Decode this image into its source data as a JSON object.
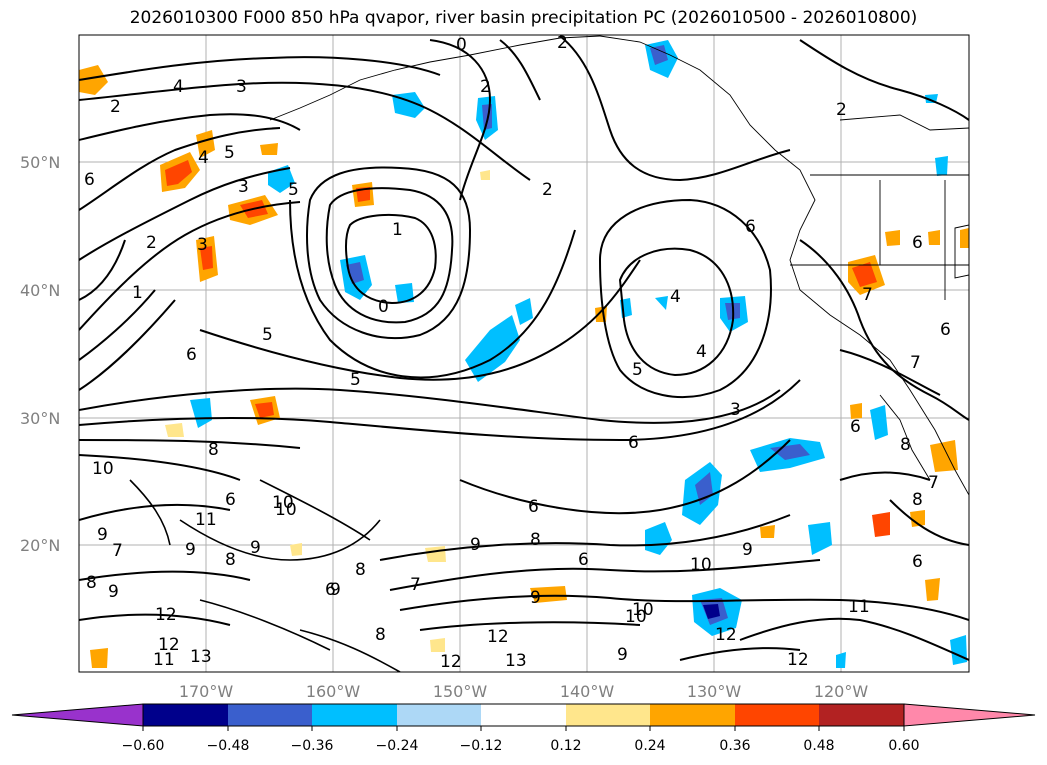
{
  "title": "2026010300 F000 850 hPa qvapor, river basin precipitation PC (2026010500 - 2026010800)",
  "lat_labels": [
    "50°N",
    "40°N",
    "30°N",
    "20°N"
  ],
  "lon_labels": [
    "170°W",
    "160°W",
    "150°W",
    "140°W",
    "130°W",
    "120°W"
  ],
  "colorbar": {
    "ticks": [
      "−0.60",
      "−0.48",
      "−0.36",
      "−0.24",
      "−0.12",
      "0.12",
      "0.24",
      "0.36",
      "0.48",
      "0.60"
    ],
    "colors": [
      "#9932cc",
      "#00008b",
      "#3a5fcd",
      "#00bfff",
      "#add8f6",
      "#ffffff",
      "#ffe68c",
      "#ffa500",
      "#ff4500",
      "#b22222",
      "#ff88aa"
    ],
    "extend": "both"
  },
  "contour_labels": [
    "4",
    "3",
    "2",
    "2",
    "2",
    "2",
    "4",
    "5",
    "3",
    "5",
    "2",
    "1",
    "1",
    "0",
    "3",
    "5",
    "6",
    "6",
    "5",
    "6",
    "6",
    "5",
    "4",
    "4",
    "3",
    "6",
    "6",
    "7",
    "10",
    "8",
    "6",
    "9",
    "10",
    "11",
    "9",
    "9",
    "9",
    "7",
    "8",
    "8",
    "9",
    "12",
    "12",
    "11",
    "13",
    "8",
    "8",
    "6",
    "9",
    "6",
    "8",
    "7",
    "9",
    "6",
    "10",
    "10",
    "10",
    "9",
    "12",
    "13",
    "11",
    "12",
    "12",
    "6",
    "8",
    "12",
    "9",
    "7",
    "6",
    "7",
    "8",
    "0",
    "10",
    "2"
  ],
  "graticule": {
    "lon": [
      -170,
      -160,
      -150,
      -140,
      -130,
      -120
    ],
    "lat": [
      50,
      40,
      30,
      20
    ]
  }
}
